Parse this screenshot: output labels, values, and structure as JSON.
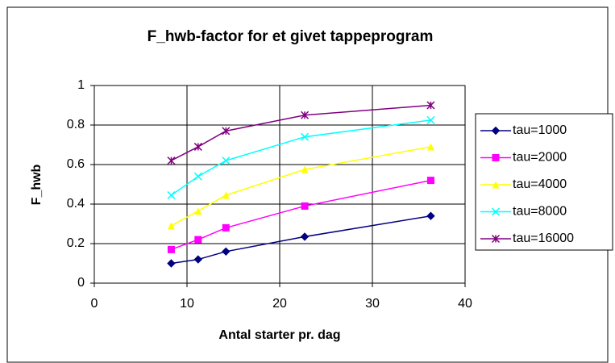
{
  "chart_data": {
    "type": "line",
    "title": "F_hwb-factor for et givet tappeprogram",
    "x_label": "Antal starter pr. dag",
    "y_label": "F_hwb",
    "x": [
      8.3,
      11.2,
      14.2,
      22.7,
      36.3
    ],
    "series": [
      {
        "name": "tau=1000",
        "color": "#000080",
        "marker": "diamond",
        "values": [
          0.1,
          0.12,
          0.16,
          0.235,
          0.34
        ]
      },
      {
        "name": "tau=2000",
        "color": "#ff00ff",
        "marker": "square",
        "values": [
          0.17,
          0.22,
          0.28,
          0.39,
          0.52
        ]
      },
      {
        "name": "tau=4000",
        "color": "#ffff00",
        "marker": "triangle",
        "values": [
          0.29,
          0.365,
          0.445,
          0.575,
          0.69
        ]
      },
      {
        "name": "tau=8000",
        "color": "#00ffff",
        "marker": "x",
        "values": [
          0.445,
          0.54,
          0.62,
          0.74,
          0.825
        ]
      },
      {
        "name": "tau=16000",
        "color": "#800080",
        "marker": "star",
        "values": [
          0.62,
          0.69,
          0.77,
          0.85,
          0.9
        ]
      }
    ],
    "xlim": [
      0,
      40
    ],
    "xticks": [
      0,
      10,
      20,
      30,
      40
    ],
    "ylim": [
      0,
      1
    ],
    "yticks": [
      0,
      0.2,
      0.4,
      0.6,
      0.8,
      1
    ],
    "grid": true,
    "legend": "right"
  }
}
